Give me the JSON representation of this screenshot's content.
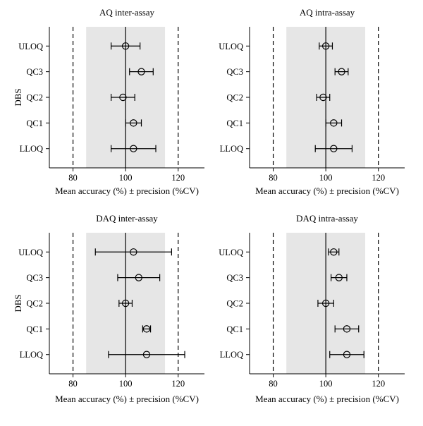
{
  "chart_data": [
    {
      "type": "scatter",
      "title": "AQ inter-assay",
      "xlabel": "Mean accuracy (%) ± precision (%CV)",
      "ylabel": "DBS",
      "xlim": [
        71,
        130
      ],
      "xticks": [
        80,
        100,
        120
      ],
      "acceptance_band": [
        85,
        115
      ],
      "dashed_limits": [
        80,
        120
      ],
      "reference_line": 100,
      "categories": [
        "ULOQ",
        "QC3",
        "QC2",
        "QC1",
        "LLOQ"
      ],
      "mean": [
        100.0,
        106.0,
        99.0,
        103.0,
        103.0
      ],
      "cv": [
        5.5,
        4.5,
        4.5,
        3.0,
        8.5
      ]
    },
    {
      "type": "scatter",
      "title": "AQ intra-assay",
      "xlabel": "Mean accuracy (%) ± precision (%CV)",
      "ylabel": "",
      "xlim": [
        71,
        130
      ],
      "xticks": [
        80,
        100,
        120
      ],
      "acceptance_band": [
        85,
        115
      ],
      "dashed_limits": [
        80,
        120
      ],
      "reference_line": 100,
      "categories": [
        "ULOQ",
        "QC3",
        "QC2",
        "QC1",
        "LLOQ"
      ],
      "mean": [
        100.0,
        106.0,
        99.0,
        103.0,
        103.0
      ],
      "cv": [
        2.5,
        2.5,
        2.5,
        3.0,
        7.0
      ]
    },
    {
      "type": "scatter",
      "title": "DAQ inter-assay",
      "xlabel": "Mean accuracy (%) ± precision (%CV)",
      "ylabel": "DBS",
      "xlim": [
        71,
        130
      ],
      "xticks": [
        80,
        100,
        120
      ],
      "acceptance_band": [
        85,
        115
      ],
      "dashed_limits": [
        80,
        120
      ],
      "reference_line": 100,
      "categories": [
        "ULOQ",
        "QC3",
        "QC2",
        "QC1",
        "LLOQ"
      ],
      "mean": [
        103.0,
        105.0,
        100.0,
        108.0,
        108.0
      ],
      "cv": [
        14.5,
        8.0,
        2.5,
        1.5,
        14.5
      ]
    },
    {
      "type": "scatter",
      "title": "DAQ intra-assay",
      "xlabel": "Mean accuracy (%) ± precision (%CV)",
      "ylabel": "",
      "xlim": [
        71,
        130
      ],
      "xticks": [
        80,
        100,
        120
      ],
      "acceptance_band": [
        85,
        115
      ],
      "dashed_limits": [
        80,
        120
      ],
      "reference_line": 100,
      "categories": [
        "ULOQ",
        "QC3",
        "QC2",
        "QC1",
        "LLOQ"
      ],
      "mean": [
        103.0,
        105.0,
        100.0,
        108.0,
        108.0
      ],
      "cv": [
        2.0,
        3.0,
        3.0,
        4.5,
        6.5
      ]
    }
  ],
  "colors": {
    "band": "#e6e6e6",
    "ink": "#000000"
  }
}
